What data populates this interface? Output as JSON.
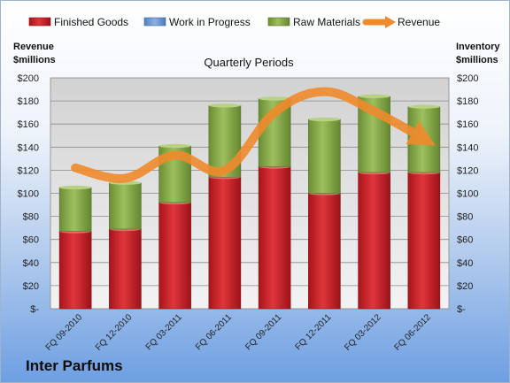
{
  "company": "Inter Parfums",
  "chart_data": {
    "type": "bar",
    "subtype": "stacked-bar-with-line",
    "title": "Quarterly Periods",
    "ylabel_left": [
      "Revenue",
      "$millions"
    ],
    "ylabel_right": [
      "Inventory",
      "$millions"
    ],
    "ylim": [
      0,
      200
    ],
    "yticks": [
      0,
      20,
      40,
      60,
      80,
      100,
      120,
      140,
      160,
      180,
      200
    ],
    "ytick_labels": [
      "$-",
      "$20",
      "$40",
      "$60",
      "$80",
      "$100",
      "$120",
      "$140",
      "$160",
      "$180",
      "$200"
    ],
    "categories": [
      "FQ 09-2010",
      "FQ 12-2010",
      "FQ 03-2011",
      "FQ 06-2011",
      "FQ 09-2011",
      "FQ 12-2011",
      "FQ 03-2012",
      "FQ 06-2012"
    ],
    "series": [
      {
        "name": "Finished Goods",
        "kind": "bar",
        "color": "#d9272e",
        "values": [
          67,
          69,
          92,
          114,
          123,
          100,
          118,
          118
        ]
      },
      {
        "name": "Work in Progress",
        "kind": "bar",
        "color": "#6f9ad6",
        "values": [
          0,
          0,
          0,
          0,
          0,
          0,
          0,
          0
        ]
      },
      {
        "name": "Raw Materials",
        "kind": "bar",
        "color": "#8fb34f",
        "values": [
          38,
          40,
          49,
          62,
          59,
          64,
          66,
          57
        ]
      },
      {
        "name": "Revenue",
        "kind": "line",
        "color": "#f08a2c",
        "values": [
          122,
          113,
          133,
          120,
          170,
          188,
          171,
          147
        ]
      }
    ],
    "legend_position": "top",
    "grid": true
  }
}
